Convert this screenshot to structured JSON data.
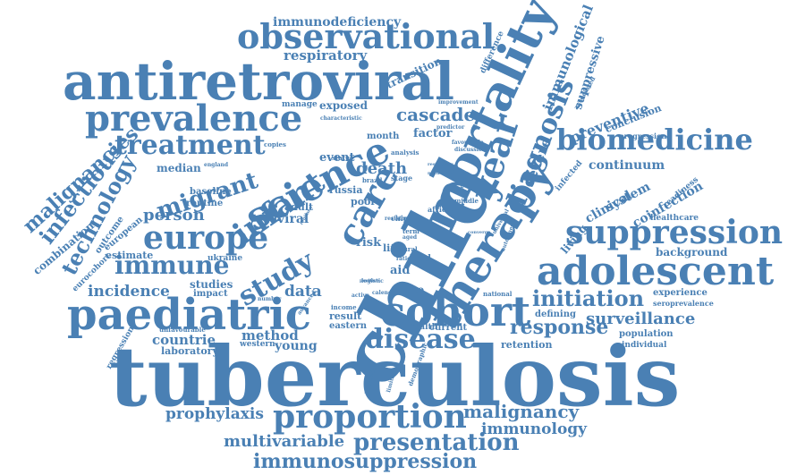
{
  "color": "#4a80b4",
  "words": [
    "tuberculosis",
    "child",
    "antiretroviral",
    "mortality",
    "therapy",
    "science",
    "cohort",
    "paediatric",
    "adolescent",
    "prevalence",
    "observational",
    "europe",
    "suppression",
    "year",
    "care",
    "proportion",
    "infant",
    "biomedicine",
    "diagnosis",
    "study",
    "disease",
    "immune",
    "migrant",
    "treatment",
    "technology",
    "infectious",
    "malignancies",
    "presentation",
    "immunosuppression",
    "malignancy",
    "initiation",
    "response",
    "surveillance",
    "immunology",
    "multivariable",
    "prophylaxis",
    "immunodeficiency",
    "respiratory",
    "immunological",
    "suppressive",
    "preventive",
    "cascade",
    "death",
    "person",
    "incidence",
    "data",
    "method",
    "countrie",
    "young",
    "laboratory",
    "median",
    "combination",
    "estimate",
    "eurocohort",
    "outcome",
    "european",
    "routine",
    "studies",
    "impact",
    "baseline",
    "ukraine",
    "severe",
    "clinical",
    "coinfection",
    "continuum",
    "system",
    "living",
    "background",
    "experience",
    "seroprevalence",
    "defining",
    "retention",
    "population",
    "individual",
    "healthcare",
    "readiness",
    "conclusion",
    "progression",
    "infected",
    "event",
    "month",
    "factor",
    "exposed",
    "manage",
    "transition",
    "difference",
    "associated",
    "adult",
    "viral",
    "trend",
    "russia",
    "poor",
    "risk",
    "life",
    "aid",
    "rate",
    "load",
    "result",
    "eastern",
    "western",
    "current",
    "health",
    "income",
    "regression",
    "unfavourable",
    "national",
    "stage",
    "status",
    "analysis",
    "brazil",
    "middle",
    "africa",
    "chip",
    "term",
    "aged",
    "rural",
    "ratio",
    "resistant",
    "characteristic",
    "improvement",
    "predictor",
    "favourable",
    "discussion",
    "england",
    "copies",
    "active",
    "logistic",
    "calendar",
    "number",
    "advanced",
    "demographic",
    "knowledge",
    "limitation",
    "responder",
    "nevirapine",
    "finding",
    "positive",
    "converge",
    "universal",
    "outcomes",
    "regimen"
  ]
}
